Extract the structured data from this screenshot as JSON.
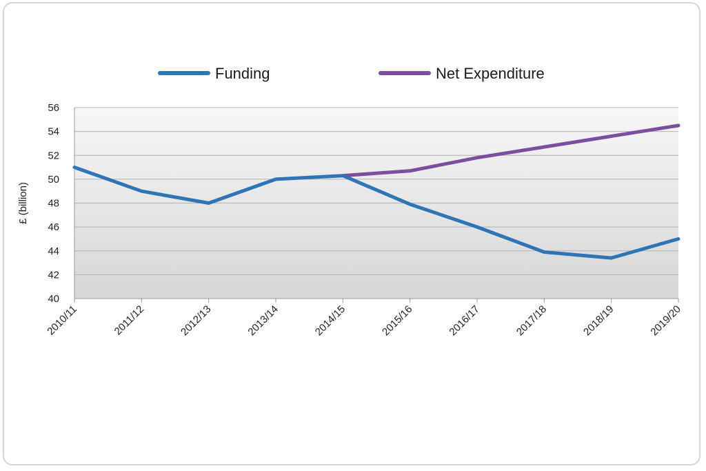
{
  "chart_data": {
    "type": "line",
    "ylabel": "£ (billion)",
    "ylim": [
      40,
      56
    ],
    "yticks": [
      40,
      42,
      44,
      46,
      48,
      50,
      52,
      54,
      56
    ],
    "categories": [
      "2010/11",
      "2011/12",
      "2012/13",
      "2013/14",
      "2014/15",
      "2015/16",
      "2016/17",
      "2017/18",
      "2018/19",
      "2019/20"
    ],
    "series": [
      {
        "name": "Funding",
        "color": "#2e75b6",
        "values": [
          51.0,
          49.0,
          48.0,
          50.0,
          50.3,
          47.9,
          46.0,
          43.9,
          43.4,
          45.0
        ]
      },
      {
        "name": "Net Expenditure",
        "color": "#7b4fa0",
        "values": [
          null,
          null,
          null,
          null,
          50.3,
          50.7,
          51.8,
          52.7,
          53.6,
          54.5
        ]
      }
    ],
    "grid": true,
    "legend_position": "top"
  }
}
